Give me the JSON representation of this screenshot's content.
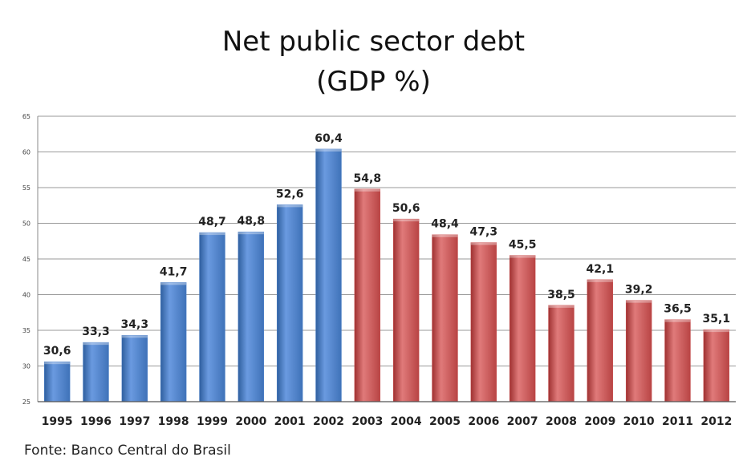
{
  "chart_data": {
    "type": "bar",
    "title": "Net public sector debt",
    "subtitle": "(GDP %)",
    "xlabel": "",
    "ylabel": "",
    "ylim": [
      25,
      65
    ],
    "yticks": [
      25,
      30,
      35,
      40,
      45,
      50,
      55,
      60,
      65
    ],
    "grid": true,
    "legend": "none",
    "categories": [
      "1995",
      "1996",
      "1997",
      "1998",
      "1999",
      "2000",
      "2001",
      "2002",
      "2003",
      "2004",
      "2005",
      "2006",
      "2007",
      "2008",
      "2009",
      "2010",
      "2011",
      "2012"
    ],
    "values": [
      30.6,
      33.3,
      34.3,
      41.7,
      48.7,
      48.8,
      52.6,
      60.4,
      54.8,
      50.6,
      48.4,
      47.3,
      45.5,
      38.5,
      42.1,
      39.2,
      36.5,
      35.1
    ],
    "value_labels": [
      "30,6",
      "33,3",
      "34,3",
      "41,7",
      "48,7",
      "48,8",
      "52,6",
      "60,4",
      "54,8",
      "50,6",
      "48,4",
      "47,3",
      "45,5",
      "38,5",
      "42,1",
      "39,2",
      "36,5",
      "35,1"
    ],
    "bar_colors": [
      "#4a7fc9",
      "#4a7fc9",
      "#4a7fc9",
      "#4a7fc9",
      "#4a7fc9",
      "#4a7fc9",
      "#4a7fc9",
      "#4a7fc9",
      "#c94f4f",
      "#c94f4f",
      "#c94f4f",
      "#c94f4f",
      "#c94f4f",
      "#c94f4f",
      "#c94f4f",
      "#c94f4f",
      "#c94f4f",
      "#c94f4f"
    ]
  },
  "colors": {
    "blue_bar": "#4a7fc9",
    "red_bar": "#c94f4f",
    "grid": "#9a9a9a"
  },
  "source": "Fonte: Banco Central do Brasil"
}
